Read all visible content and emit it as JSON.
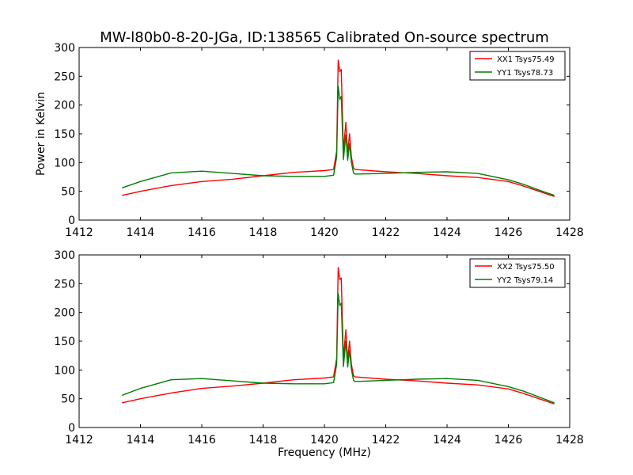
{
  "figure": {
    "title": "MW-l80b0-8-20-JGa, ID:138565 Calibrated On-source spectrum",
    "xlabel": "Frequency (MHz)",
    "ylabel": "Power in Kelvin"
  },
  "chart_data": [
    {
      "type": "line",
      "xlim": [
        1412,
        1428
      ],
      "ylim": [
        0,
        300
      ],
      "x_ticks": [
        1412,
        1414,
        1416,
        1418,
        1420,
        1422,
        1424,
        1426,
        1428
      ],
      "y_ticks": [
        0,
        50,
        100,
        150,
        200,
        250,
        300
      ],
      "legend_position": "top-right",
      "series": [
        {
          "name": "XX1 Tsys75.49",
          "color": "#ff0000",
          "points": [
            [
              1413.4,
              43
            ],
            [
              1414,
              50
            ],
            [
              1415,
              60
            ],
            [
              1416,
              67
            ],
            [
              1417,
              71
            ],
            [
              1418,
              77
            ],
            [
              1419,
              83
            ],
            [
              1420,
              86
            ],
            [
              1420.3,
              88
            ],
            [
              1420.4,
              120
            ],
            [
              1420.45,
              278
            ],
            [
              1420.5,
              258
            ],
            [
              1420.55,
              262
            ],
            [
              1420.62,
              120
            ],
            [
              1420.7,
              170
            ],
            [
              1420.76,
              118
            ],
            [
              1420.82,
              150
            ],
            [
              1420.88,
              110
            ],
            [
              1420.95,
              90
            ],
            [
              1421,
              88
            ],
            [
              1422,
              84
            ],
            [
              1423,
              81
            ],
            [
              1424,
              77
            ],
            [
              1425,
              74
            ],
            [
              1426,
              67
            ],
            [
              1426.5,
              59
            ],
            [
              1427,
              50
            ],
            [
              1427.5,
              41
            ]
          ]
        },
        {
          "name": "YY1 Tsys78.73",
          "color": "#007f00",
          "points": [
            [
              1413.4,
              56
            ],
            [
              1414,
              67
            ],
            [
              1415,
              82
            ],
            [
              1416,
              85
            ],
            [
              1417,
              81
            ],
            [
              1418,
              77
            ],
            [
              1419,
              76
            ],
            [
              1420,
              76
            ],
            [
              1420.3,
              78
            ],
            [
              1420.4,
              110
            ],
            [
              1420.45,
              233
            ],
            [
              1420.5,
              210
            ],
            [
              1420.55,
              215
            ],
            [
              1420.62,
              105
            ],
            [
              1420.7,
              148
            ],
            [
              1420.76,
              104
            ],
            [
              1420.82,
              133
            ],
            [
              1420.88,
              100
            ],
            [
              1420.95,
              82
            ],
            [
              1421,
              80
            ],
            [
              1422,
              81
            ],
            [
              1423,
              83
            ],
            [
              1424,
              84
            ],
            [
              1425,
              81
            ],
            [
              1426,
              70
            ],
            [
              1426.5,
              62
            ],
            [
              1427,
              52
            ],
            [
              1427.5,
              43
            ]
          ]
        }
      ]
    },
    {
      "type": "line",
      "xlim": [
        1412,
        1428
      ],
      "ylim": [
        0,
        300
      ],
      "x_ticks": [
        1412,
        1414,
        1416,
        1418,
        1420,
        1422,
        1424,
        1426,
        1428
      ],
      "y_ticks": [
        0,
        50,
        100,
        150,
        200,
        250,
        300
      ],
      "legend_position": "top-right",
      "series": [
        {
          "name": "XX2 Tsys75.50",
          "color": "#ff0000",
          "points": [
            [
              1413.4,
              43
            ],
            [
              1414,
              50
            ],
            [
              1415,
              60
            ],
            [
              1416,
              68
            ],
            [
              1417,
              72
            ],
            [
              1418,
              77
            ],
            [
              1419,
              83
            ],
            [
              1420,
              86
            ],
            [
              1420.3,
              88
            ],
            [
              1420.4,
              120
            ],
            [
              1420.45,
              278
            ],
            [
              1420.5,
              257
            ],
            [
              1420.55,
              260
            ],
            [
              1420.62,
              120
            ],
            [
              1420.7,
              170
            ],
            [
              1420.76,
              118
            ],
            [
              1420.82,
              150
            ],
            [
              1420.88,
              110
            ],
            [
              1420.95,
              90
            ],
            [
              1421,
              88
            ],
            [
              1422,
              84
            ],
            [
              1423,
              81
            ],
            [
              1424,
              77
            ],
            [
              1425,
              74
            ],
            [
              1426,
              67
            ],
            [
              1426.5,
              59
            ],
            [
              1427,
              50
            ],
            [
              1427.5,
              41
            ]
          ]
        },
        {
          "name": "YY2 Tsys79.14",
          "color": "#007f00",
          "points": [
            [
              1413.4,
              56
            ],
            [
              1414,
              68
            ],
            [
              1415,
              83
            ],
            [
              1416,
              85
            ],
            [
              1417,
              81
            ],
            [
              1418,
              77
            ],
            [
              1419,
              76
            ],
            [
              1420,
              76
            ],
            [
              1420.3,
              78
            ],
            [
              1420.4,
              110
            ],
            [
              1420.45,
              233
            ],
            [
              1420.5,
              212
            ],
            [
              1420.55,
              216
            ],
            [
              1420.62,
              106
            ],
            [
              1420.7,
              150
            ],
            [
              1420.76,
              105
            ],
            [
              1420.82,
              134
            ],
            [
              1420.88,
              101
            ],
            [
              1420.95,
              82
            ],
            [
              1421,
              80
            ],
            [
              1422,
              82
            ],
            [
              1423,
              84
            ],
            [
              1424,
              85
            ],
            [
              1425,
              82
            ],
            [
              1426,
              71
            ],
            [
              1426.5,
              63
            ],
            [
              1427,
              53
            ],
            [
              1427.5,
              43
            ]
          ]
        }
      ]
    }
  ]
}
